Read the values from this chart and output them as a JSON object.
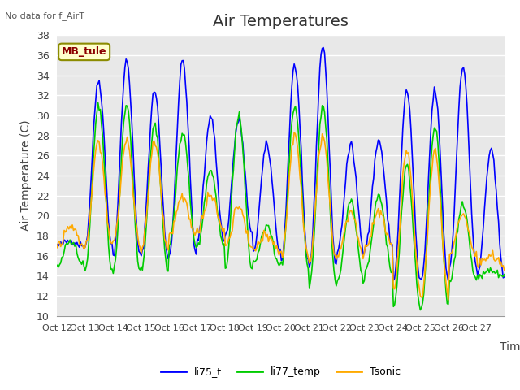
{
  "title": "Air Temperatures",
  "ylabel": "Air Temperature (C)",
  "xlabel": "Time",
  "annotation": "No data for f_AirT",
  "legend_label": "MB_tule",
  "series_labels": [
    "li75_t",
    "li77_temp",
    "Tsonic"
  ],
  "series_colors": [
    "#0000ff",
    "#00cc00",
    "#ffaa00"
  ],
  "ylim": [
    10,
    38
  ],
  "yticks": [
    10,
    12,
    14,
    16,
    18,
    20,
    22,
    24,
    26,
    28,
    30,
    32,
    34,
    36,
    38
  ],
  "xtick_labels": [
    "Oct 12",
    "Oct 13",
    "Oct 14",
    "Oct 15",
    "Oct 16",
    "Oct 17",
    "Oct 18",
    "Oct 19",
    "Oct 20",
    "Oct 21",
    "Oct 22",
    "Oct 23",
    "Oct 24",
    "Oct 25",
    "Oct 26",
    "Oct 27"
  ],
  "background_color": "#e8e8e8",
  "plot_bg_color": "#e8e8e8",
  "grid_color": "#ffffff",
  "title_fontsize": 14,
  "label_fontsize": 10,
  "tick_fontsize": 9,
  "peaks_li75": [
    17.5,
    33.5,
    35.5,
    32.5,
    35.5,
    30.0,
    29.5,
    27.0,
    35.0,
    37.0,
    27.0,
    27.5,
    32.5,
    32.5,
    35.0,
    26.5
  ],
  "peaks_li77": [
    17.5,
    31.0,
    31.0,
    29.0,
    28.5,
    24.5,
    30.0,
    19.0,
    31.0,
    31.0,
    21.5,
    22.0,
    25.0,
    29.0,
    21.0,
    14.5
  ],
  "peaks_tsonic": [
    19.0,
    27.5,
    27.5,
    27.5,
    22.0,
    22.0,
    21.0,
    18.0,
    28.0,
    28.0,
    20.5,
    20.5,
    26.5,
    26.5,
    20.0,
    16.0
  ],
  "mins_li75": [
    17.0,
    17.0,
    16.0,
    16.0,
    16.0,
    17.5,
    18.0,
    16.5,
    15.5,
    15.0,
    16.5,
    17.0,
    13.5,
    13.5,
    15.0,
    14.0
  ],
  "mins_li77": [
    15.0,
    14.5,
    14.5,
    14.5,
    17.0,
    17.0,
    14.5,
    15.0,
    15.0,
    13.0,
    13.5,
    14.5,
    11.0,
    11.0,
    13.5,
    14.0
  ],
  "mins_tsonic": [
    17.0,
    17.0,
    17.0,
    16.5,
    18.0,
    18.5,
    17.0,
    16.5,
    16.0,
    15.5,
    16.0,
    17.0,
    12.5,
    12.0,
    16.0,
    15.0
  ]
}
